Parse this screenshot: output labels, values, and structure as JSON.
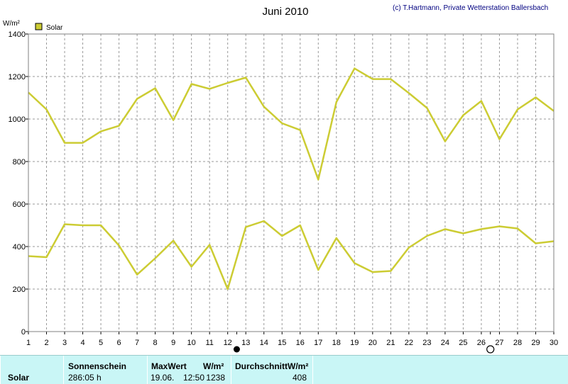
{
  "header": {
    "title": "Juni 2010",
    "credit": "(c) T.Hartmann, Private Wetterstation Ballersbach",
    "unit": "W/m²"
  },
  "legend": {
    "label": "Solar",
    "color": "#cccc33"
  },
  "colors": {
    "line": "#cccc33",
    "grid": "#999999",
    "panel": "#c9f6f6"
  },
  "chart_data": {
    "type": "line",
    "x": [
      1,
      2,
      3,
      4,
      5,
      6,
      7,
      8,
      9,
      10,
      11,
      12,
      13,
      14,
      15,
      16,
      17,
      18,
      19,
      20,
      21,
      22,
      23,
      24,
      25,
      26,
      27,
      28,
      29,
      30
    ],
    "xlim": [
      1,
      30
    ],
    "ylim": [
      0,
      1400
    ],
    "yticks": [
      0,
      200,
      400,
      600,
      800,
      1000,
      1200,
      1400
    ],
    "ylabel": "W/m²",
    "grid": true,
    "legend_position": "top-left",
    "markers": [
      {
        "x": 12.5,
        "symbol": "full-moon-dot"
      },
      {
        "x": 26.5,
        "symbol": "new-moon-circle"
      }
    ],
    "series": [
      {
        "name": "Solar",
        "role": "max",
        "values": [
          1125,
          1045,
          888,
          888,
          942,
          968,
          1095,
          1145,
          995,
          1165,
          1142,
          1170,
          1195,
          1058,
          980,
          948,
          715,
          1080,
          1238,
          1188,
          1188,
          1122,
          1052,
          895,
          1018,
          1085,
          905,
          1045,
          1102,
          1038
        ]
      },
      {
        "name": "Solar",
        "role": "mean",
        "values": [
          355,
          350,
          505,
          500,
          500,
          405,
          268,
          345,
          428,
          305,
          408,
          200,
          492,
          520,
          450,
          500,
          290,
          440,
          322,
          280,
          285,
          395,
          450,
          482,
          462,
          482,
          495,
          485,
          415,
          425
        ]
      }
    ]
  },
  "stats": {
    "row_label": "Solar",
    "sunshine_header": "Sonnenschein",
    "sunshine_value": "286:05 h",
    "max_header": "MaxWert",
    "max_unit": "W/m²",
    "max_date": "19.06.",
    "max_time": "12:50",
    "max_value": "1238",
    "avg_header": "DurchschnittW/m²",
    "avg_value": "408"
  }
}
